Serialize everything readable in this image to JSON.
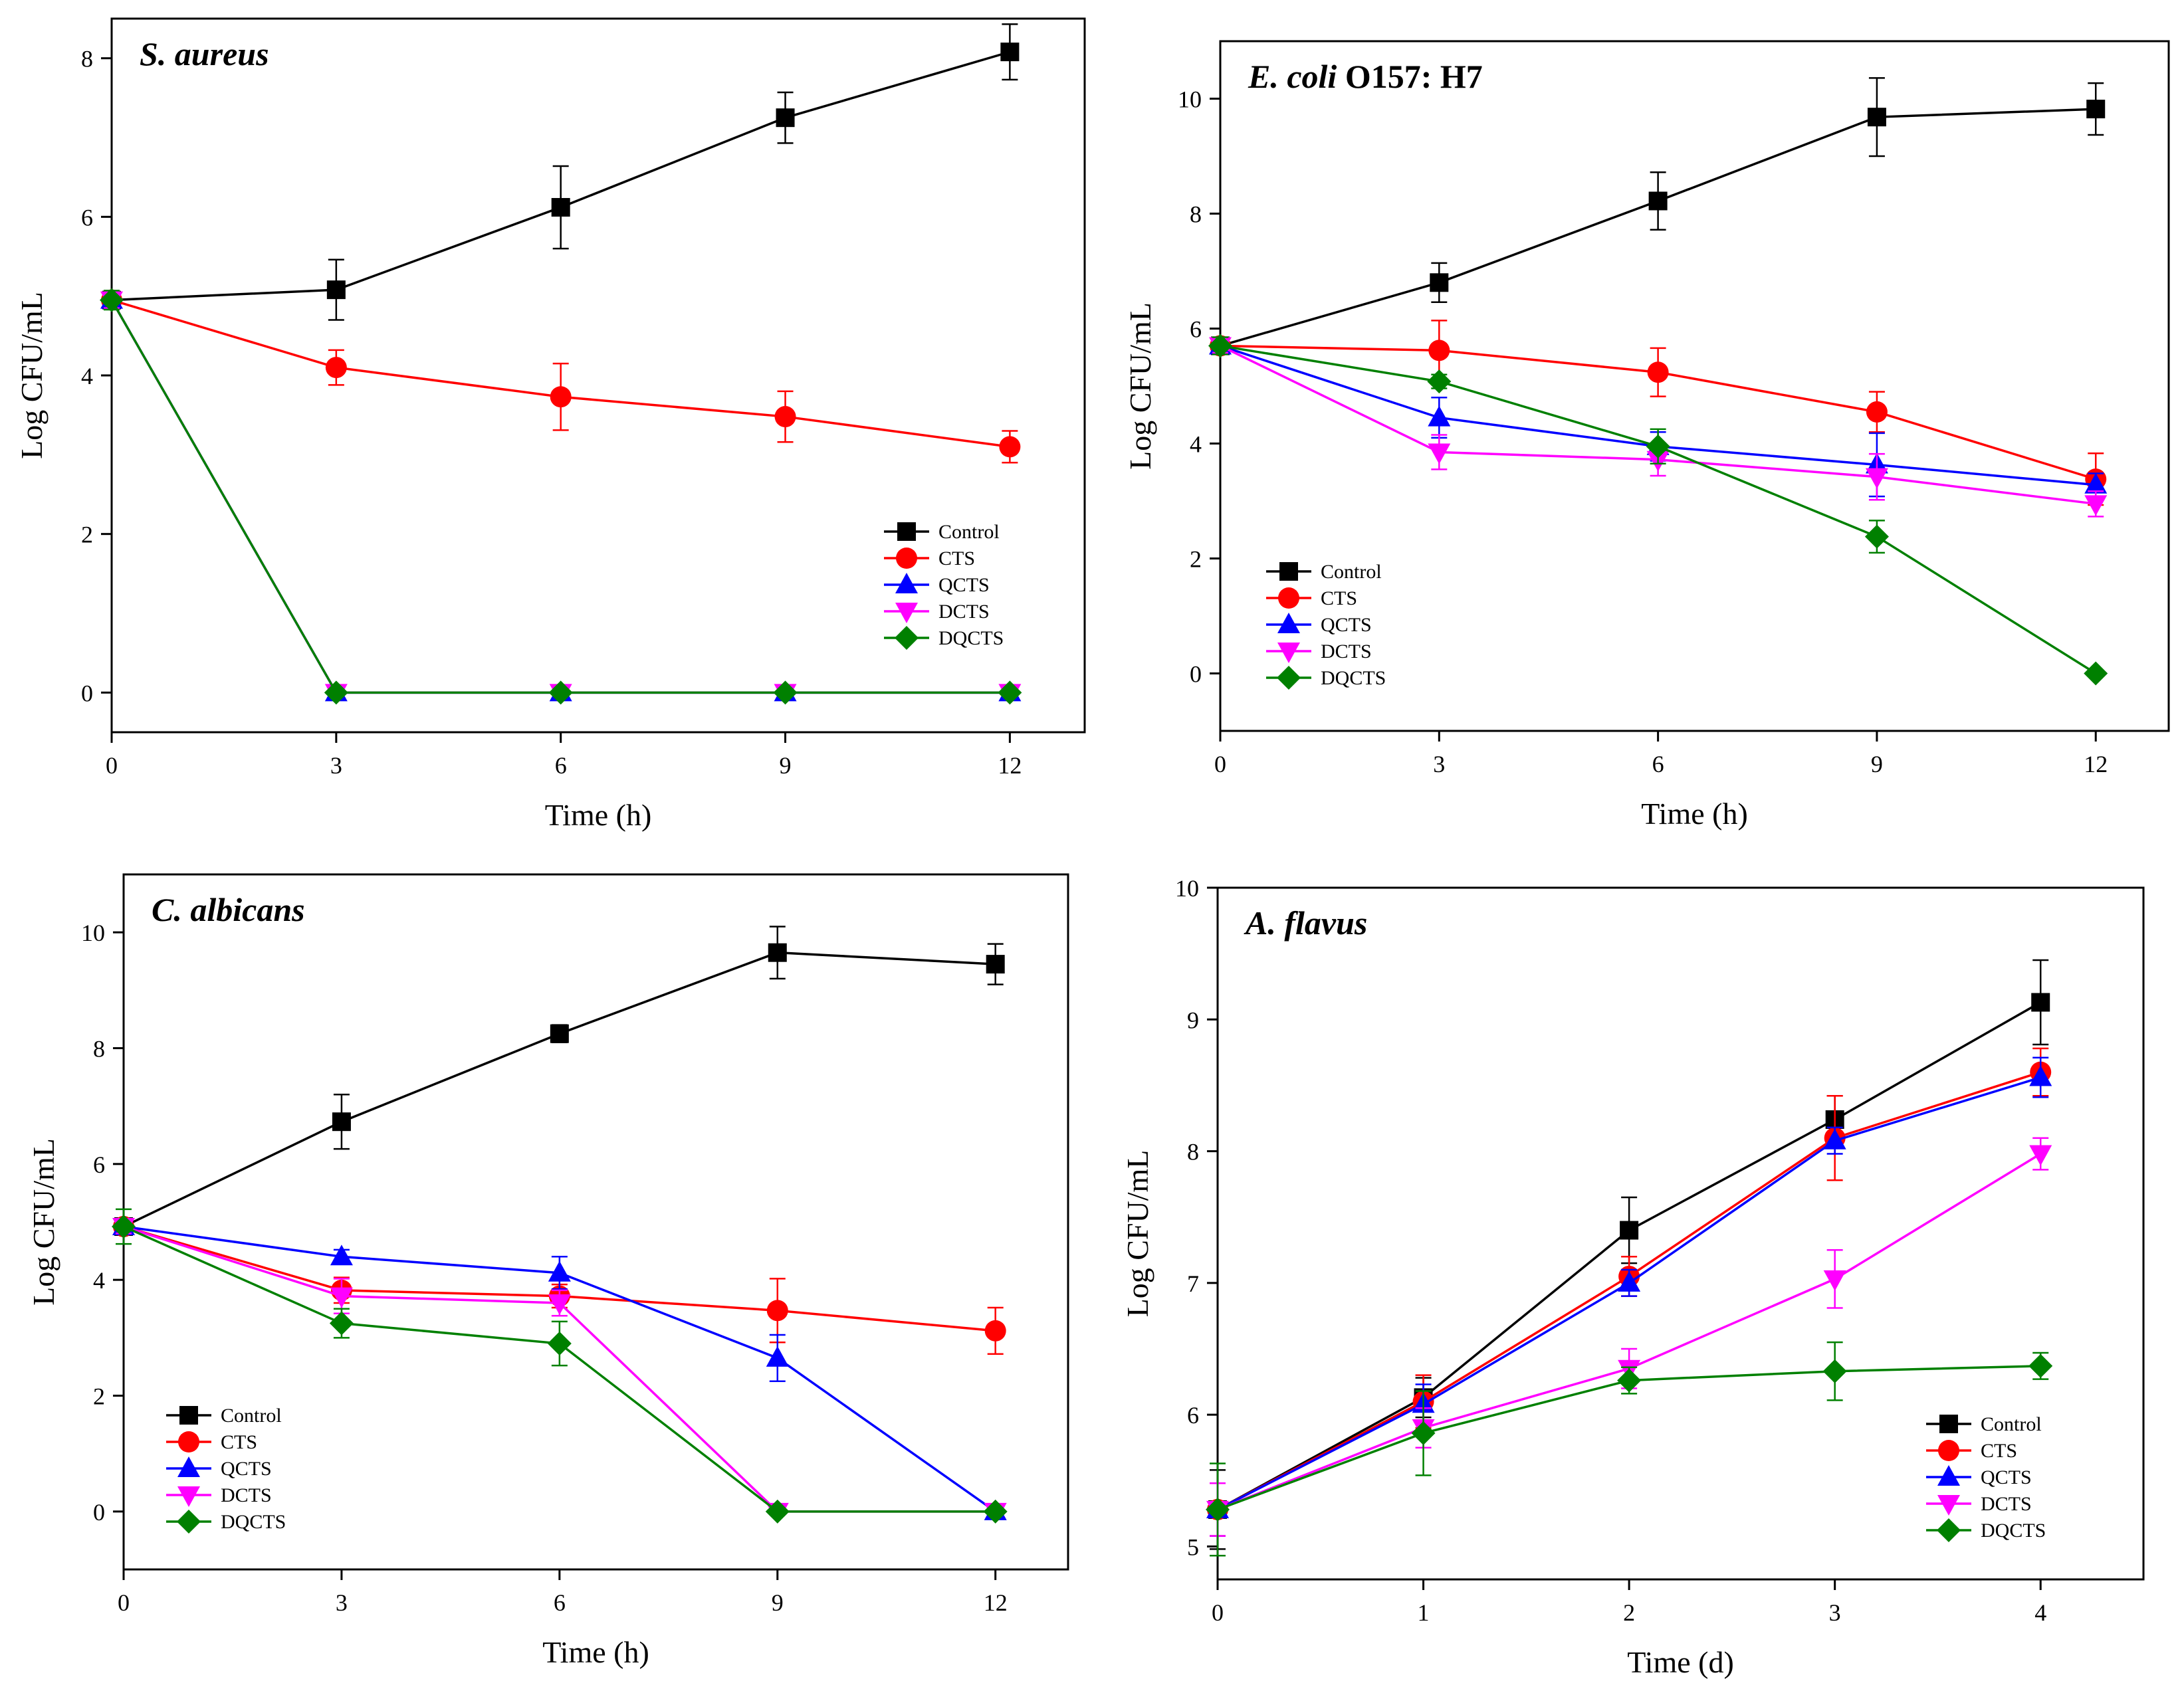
{
  "colors": {
    "Control": "#000000",
    "CTS": "#ff0000",
    "QCTS": "#0000ff",
    "DCTS": "#ff00ff",
    "DQCTS": "#008000"
  },
  "chart_data": [
    {
      "type": "line",
      "title": "S. aureus",
      "title_parts": [
        {
          "text": "S. aureus",
          "italic": true
        }
      ],
      "xlabel": "Time (h)",
      "ylabel": "Log CFU/mL",
      "x": [
        0,
        3,
        6,
        9,
        12
      ],
      "xticks": [
        0,
        3,
        6,
        9,
        12
      ],
      "xlim": [
        0,
        13
      ],
      "yticks": [
        0,
        2,
        4,
        6,
        8
      ],
      "ylim": [
        -0.5,
        8.5
      ],
      "legend_position": "lower-right",
      "series": [
        {
          "name": "Control",
          "marker": "square",
          "values": [
            4.95,
            5.08,
            6.12,
            7.25,
            8.08
          ],
          "errors": [
            0.1,
            0.38,
            0.52,
            0.32,
            0.35
          ]
        },
        {
          "name": "CTS",
          "marker": "circle",
          "values": [
            4.95,
            4.1,
            3.73,
            3.48,
            3.1
          ],
          "errors": [
            0.1,
            0.22,
            0.42,
            0.32,
            0.2
          ]
        },
        {
          "name": "QCTS",
          "marker": "triangle-up",
          "values": [
            4.95,
            0,
            0,
            0,
            0
          ],
          "errors": [
            0.1,
            0,
            0,
            0,
            0
          ]
        },
        {
          "name": "DCTS",
          "marker": "triangle-down",
          "values": [
            4.95,
            0,
            0,
            0,
            0
          ],
          "errors": [
            0.1,
            0,
            0,
            0,
            0
          ]
        },
        {
          "name": "DQCTS",
          "marker": "diamond",
          "values": [
            4.95,
            0,
            0,
            0,
            0
          ],
          "errors": [
            0.12,
            0,
            0,
            0,
            0
          ]
        }
      ]
    },
    {
      "type": "line",
      "title": "E. coli O157: H7",
      "title_parts": [
        {
          "text": "E. coli",
          "italic": true
        },
        {
          "text": " O157: H7",
          "italic": false
        }
      ],
      "xlabel": "Time (h)",
      "ylabel": "Log CFU/mL",
      "x": [
        0,
        3,
        6,
        9,
        12
      ],
      "xticks": [
        0,
        3,
        6,
        9,
        12
      ],
      "xlim": [
        0,
        13
      ],
      "yticks": [
        0,
        2,
        4,
        6,
        8,
        10
      ],
      "ylim": [
        -1,
        11
      ],
      "legend_position": "lower-left",
      "series": [
        {
          "name": "Control",
          "marker": "square",
          "values": [
            5.7,
            6.8,
            8.22,
            9.68,
            9.82
          ],
          "errors": [
            0.12,
            0.34,
            0.5,
            0.68,
            0.45
          ]
        },
        {
          "name": "CTS",
          "marker": "circle",
          "values": [
            5.7,
            5.62,
            5.24,
            4.55,
            3.38
          ],
          "errors": [
            0.12,
            0.52,
            0.42,
            0.35,
            0.45
          ]
        },
        {
          "name": "QCTS",
          "marker": "triangle-up",
          "values": [
            5.7,
            4.45,
            3.95,
            3.63,
            3.28
          ],
          "errors": [
            0.12,
            0.35,
            0.25,
            0.55,
            0.2
          ]
        },
        {
          "name": "DCTS",
          "marker": "triangle-down",
          "values": [
            5.7,
            3.85,
            3.72,
            3.42,
            2.95
          ],
          "errors": [
            0.12,
            0.3,
            0.28,
            0.4,
            0.22
          ]
        },
        {
          "name": "DQCTS",
          "marker": "diamond",
          "values": [
            5.7,
            5.08,
            3.95,
            2.38,
            0
          ],
          "errors": [
            0.15,
            0.12,
            0.3,
            0.28,
            0
          ]
        }
      ]
    },
    {
      "type": "line",
      "title": "C. albicans",
      "title_parts": [
        {
          "text": "C. albicans",
          "italic": true
        }
      ],
      "xlabel": "Time (h)",
      "ylabel": "Log CFU/mL",
      "x": [
        0,
        3,
        6,
        9,
        12
      ],
      "xticks": [
        0,
        3,
        6,
        9,
        12
      ],
      "xlim": [
        0,
        13
      ],
      "yticks": [
        0,
        2,
        4,
        6,
        8,
        10
      ],
      "ylim": [
        -1,
        11
      ],
      "legend_position": "lower-left",
      "series": [
        {
          "name": "Control",
          "marker": "square",
          "values": [
            4.92,
            6.73,
            8.25,
            9.65,
            9.45
          ],
          "errors": [
            0.12,
            0.47,
            0.15,
            0.45,
            0.35
          ]
        },
        {
          "name": "CTS",
          "marker": "circle",
          "values": [
            4.92,
            3.82,
            3.72,
            3.47,
            3.12
          ],
          "errors": [
            0.12,
            0.22,
            0.2,
            0.55,
            0.4
          ]
        },
        {
          "name": "QCTS",
          "marker": "triangle-up",
          "values": [
            4.92,
            4.4,
            4.12,
            2.65,
            0
          ],
          "errors": [
            0.12,
            0.12,
            0.28,
            0.4,
            0
          ]
        },
        {
          "name": "DCTS",
          "marker": "triangle-down",
          "values": [
            4.92,
            3.72,
            3.6,
            0,
            0
          ],
          "errors": [
            0.12,
            0.3,
            0.22,
            0,
            0
          ]
        },
        {
          "name": "DQCTS",
          "marker": "diamond",
          "values": [
            4.92,
            3.25,
            2.9,
            0,
            0
          ],
          "errors": [
            0.3,
            0.25,
            0.38,
            0,
            0
          ]
        }
      ]
    },
    {
      "type": "line",
      "title": "A. flavus",
      "title_parts": [
        {
          "text": "A. flavus",
          "italic": true
        }
      ],
      "xlabel": "Time (d)",
      "ylabel": "Log CFU/mL",
      "x": [
        0,
        1,
        2,
        3,
        4
      ],
      "xticks": [
        0,
        1,
        2,
        3,
        4
      ],
      "xlim": [
        0,
        4.5
      ],
      "yticks": [
        5,
        6,
        7,
        8,
        9,
        10
      ],
      "ylim": [
        4.75,
        10
      ],
      "legend_position": "lower-right",
      "series": [
        {
          "name": "Control",
          "marker": "square",
          "values": [
            5.28,
            6.13,
            7.4,
            8.24,
            9.13
          ],
          "errors": [
            0.3,
            0.15,
            0.25,
            0.18,
            0.32
          ]
        },
        {
          "name": "CTS",
          "marker": "circle",
          "values": [
            5.28,
            6.1,
            7.05,
            8.1,
            8.6
          ],
          "errors": [
            0.2,
            0.2,
            0.15,
            0.32,
            0.18
          ]
        },
        {
          "name": "QCTS",
          "marker": "triangle-up",
          "values": [
            5.28,
            6.08,
            7.0,
            8.08,
            8.56
          ],
          "errors": [
            0.2,
            0.15,
            0.1,
            0.1,
            0.15
          ]
        },
        {
          "name": "DCTS",
          "marker": "triangle-down",
          "values": [
            5.28,
            5.9,
            6.35,
            7.03,
            7.98
          ],
          "errors": [
            0.2,
            0.15,
            0.15,
            0.22,
            0.12
          ]
        },
        {
          "name": "DQCTS",
          "marker": "diamond",
          "values": [
            5.28,
            5.86,
            6.26,
            6.33,
            6.37
          ],
          "errors": [
            0.35,
            0.32,
            0.1,
            0.22,
            0.1
          ]
        }
      ]
    }
  ]
}
